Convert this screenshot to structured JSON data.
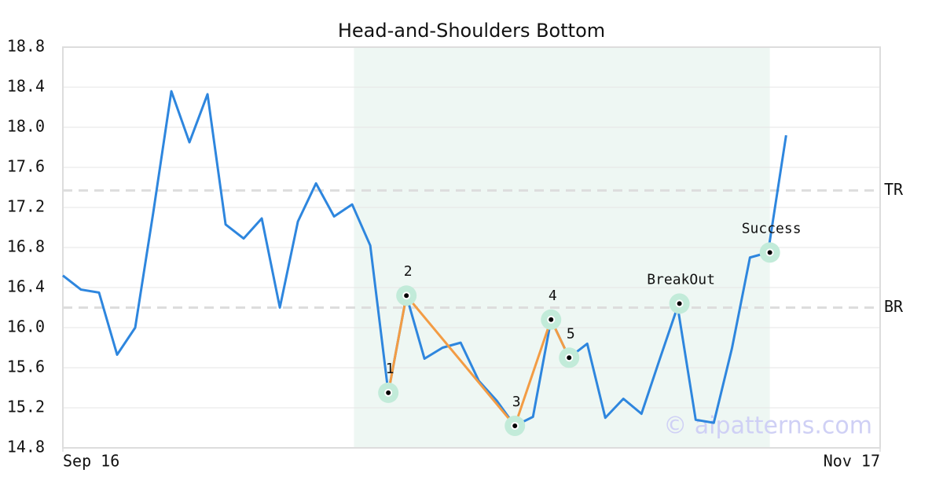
{
  "chart_data": {
    "type": "line",
    "title": "Head-and-Shoulders Bottom",
    "x": [
      0,
      1,
      2,
      3,
      4,
      5,
      6,
      7,
      8,
      9,
      10,
      11,
      12,
      13,
      14,
      15,
      16,
      17,
      18,
      19,
      20,
      21,
      22,
      23,
      24,
      25,
      26,
      27,
      28,
      29,
      30,
      31,
      32,
      33,
      34,
      35,
      36,
      37,
      38,
      39,
      40
    ],
    "xlim": [
      0,
      45.2
    ],
    "xticks": [
      {
        "value": 0,
        "label": "Sep 16"
      },
      {
        "value": 45.2,
        "label": "Nov 17"
      }
    ],
    "series": [
      {
        "color": "#2e86de",
        "values": [
          16.52,
          16.38,
          16.35,
          15.73,
          16.0,
          17.15,
          18.36,
          17.85,
          18.33,
          17.03,
          16.89,
          17.09,
          16.2,
          17.06,
          17.44,
          17.11,
          17.23,
          16.82,
          15.35,
          16.32,
          15.69,
          15.8,
          15.85,
          15.47,
          15.27,
          15.02,
          15.11,
          16.08,
          15.7,
          15.84,
          15.1,
          15.29,
          15.14,
          15.68,
          16.21,
          15.08,
          15.05,
          15.79,
          16.7,
          16.75,
          17.92
        ]
      }
    ],
    "ylim": [
      14.8,
      18.8
    ],
    "yticks": [
      14.8,
      15.2,
      15.6,
      {
        "value": 16.0,
        "label": "16.0"
      },
      16.4,
      16.8,
      17.2,
      17.6,
      {
        "value": 18.0,
        "label": "18.0"
      },
      18.4,
      18.8
    ],
    "grid": true,
    "highlight": [
      16.1,
      39.1
    ],
    "levels": [
      {
        "name": "TR",
        "value": 17.37
      },
      {
        "name": "BR",
        "value": 16.2
      }
    ],
    "pattern_color": "#f39c44",
    "pattern_points": [
      {
        "label": "1",
        "x": 18,
        "y": 15.35
      },
      {
        "label": "2",
        "x": 19,
        "y": 16.32
      },
      {
        "label": "3",
        "x": 25,
        "y": 15.02
      },
      {
        "label": "4",
        "x": 27,
        "y": 16.08
      },
      {
        "label": "5",
        "x": 28,
        "y": 15.7
      }
    ],
    "events": [
      {
        "label": "BreakOut",
        "x": 34.1,
        "y": 16.24
      },
      {
        "label": "Success",
        "x": 39.1,
        "y": 16.75
      }
    ],
    "watermark": "© aipatterns.com"
  }
}
